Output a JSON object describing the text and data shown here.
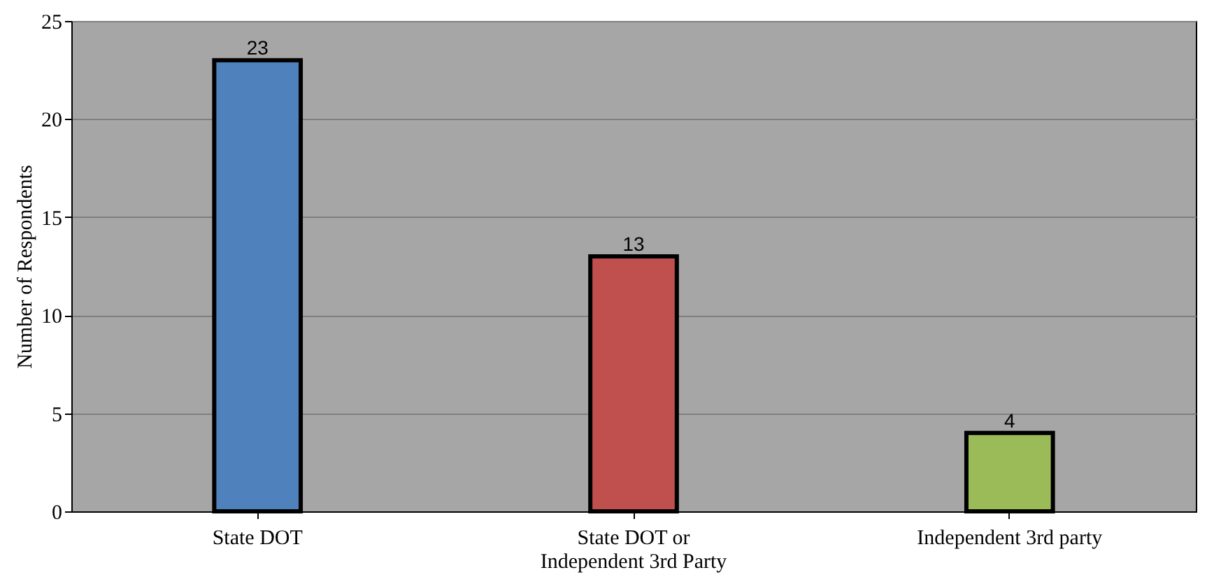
{
  "chart_data": {
    "type": "bar",
    "ylabel": "Number of Respondents",
    "categories": [
      "State DOT",
      "State DOT or Independent 3rd Party",
      "Independent 3rd party"
    ],
    "values": [
      23,
      13,
      4
    ],
    "colors": [
      "#4f81bd",
      "#c0504d",
      "#9bbb59"
    ],
    "ylim": [
      0,
      25
    ],
    "yticks": [
      0,
      5,
      10,
      15,
      20,
      25
    ],
    "grid": "y",
    "data_labels": true,
    "legend": false
  }
}
